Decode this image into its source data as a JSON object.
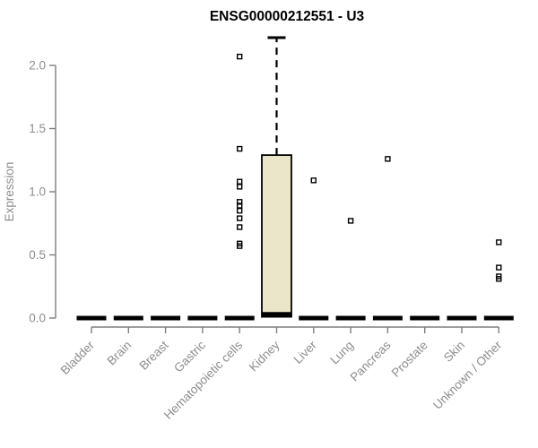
{
  "page": {
    "background": "#ffffff"
  },
  "chart_data": {
    "type": "box",
    "title": "ENSG00000212551 - U3",
    "ylabel": "Expression",
    "xlabel": "",
    "grid": false,
    "legend": null,
    "ylim": [
      0,
      2.3
    ],
    "yticks": [
      {
        "value": 0.0,
        "label": "0.0"
      },
      {
        "value": 0.5,
        "label": "0.5"
      },
      {
        "value": 1.0,
        "label": "1.0"
      },
      {
        "value": 1.5,
        "label": "1.5"
      },
      {
        "value": 2.0,
        "label": "2.0"
      }
    ],
    "categories": [
      "Bladder",
      "Brain",
      "Breast",
      "Gastric",
      "Hematopoietic cells",
      "Kidney",
      "Liver",
      "Lung",
      "Pancreas",
      "Prostate",
      "Skin",
      "Unknown / Other"
    ],
    "boxes": [
      {
        "category": "Bladder",
        "q1": 0,
        "median": 0,
        "q3": 0,
        "whisker_low": 0,
        "whisker_high": 0,
        "outliers": []
      },
      {
        "category": "Brain",
        "q1": 0,
        "median": 0,
        "q3": 0,
        "whisker_low": 0,
        "whisker_high": 0,
        "outliers": []
      },
      {
        "category": "Breast",
        "q1": 0,
        "median": 0,
        "q3": 0,
        "whisker_low": 0,
        "whisker_high": 0,
        "outliers": []
      },
      {
        "category": "Gastric",
        "q1": 0,
        "median": 0,
        "q3": 0,
        "whisker_low": 0,
        "whisker_high": 0,
        "outliers": []
      },
      {
        "category": "Hematopoietic cells",
        "q1": 0,
        "median": 0,
        "q3": 0,
        "whisker_low": 0,
        "whisker_high": 0,
        "outliers": [
          2.07,
          1.34,
          1.08,
          1.04,
          0.92,
          0.89,
          0.85,
          0.79,
          0.72,
          0.59,
          0.57
        ]
      },
      {
        "category": "Kidney",
        "q1": 0.01,
        "median": 0.03,
        "q3": 1.29,
        "whisker_low": 0.01,
        "whisker_high": 2.22,
        "outliers": []
      },
      {
        "category": "Liver",
        "q1": 0,
        "median": 0,
        "q3": 0,
        "whisker_low": 0,
        "whisker_high": 0,
        "outliers": [
          1.09
        ]
      },
      {
        "category": "Lung",
        "q1": 0,
        "median": 0,
        "q3": 0,
        "whisker_low": 0,
        "whisker_high": 0,
        "outliers": [
          0.77
        ]
      },
      {
        "category": "Pancreas",
        "q1": 0,
        "median": 0,
        "q3": 0,
        "whisker_low": 0,
        "whisker_high": 0,
        "outliers": [
          1.26
        ]
      },
      {
        "category": "Prostate",
        "q1": 0,
        "median": 0,
        "q3": 0,
        "whisker_low": 0,
        "whisker_high": 0,
        "outliers": []
      },
      {
        "category": "Skin",
        "q1": 0,
        "median": 0,
        "q3": 0,
        "whisker_low": 0,
        "whisker_high": 0,
        "outliers": []
      },
      {
        "category": "Unknown / Other",
        "q1": 0,
        "median": 0,
        "q3": 0,
        "whisker_low": 0,
        "whisker_high": 0,
        "outliers": [
          0.6,
          0.4,
          0.33,
          0.31
        ]
      }
    ],
    "colors": {
      "box_fill": "#ebe6ca",
      "box_stroke": "#000000",
      "median": "#000000",
      "whisker": "#000000",
      "outlier": "#000000",
      "axis": "#7e7e7e",
      "tick_label": "#8d8d8d",
      "title": "#000000"
    }
  }
}
